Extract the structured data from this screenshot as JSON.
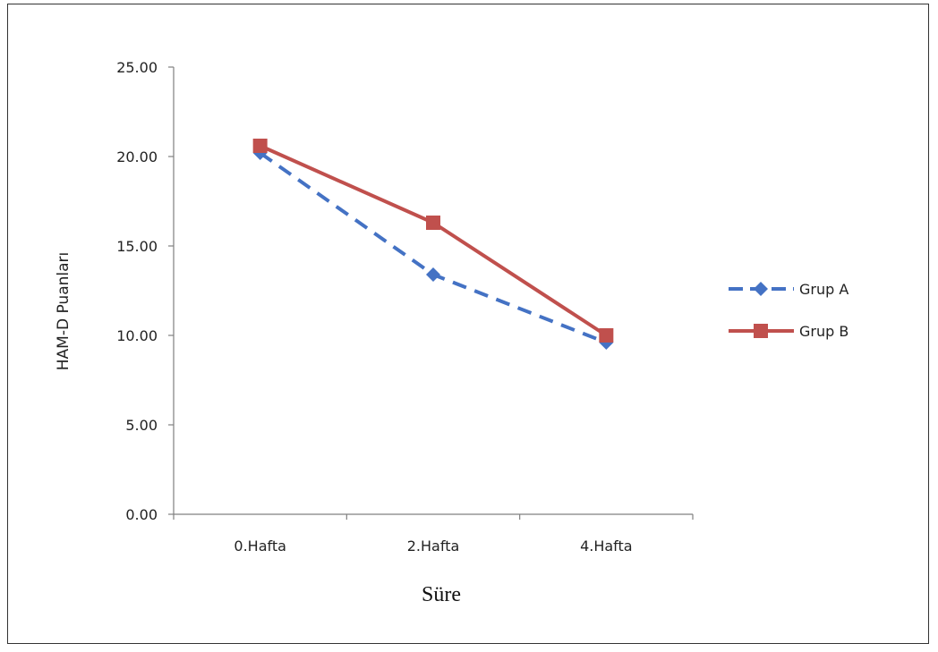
{
  "chart_data": {
    "type": "line",
    "categories": [
      "0.Hafta",
      "2.Hafta",
      "4.Hafta"
    ],
    "series": [
      {
        "name": "Grup A",
        "values": [
          20.2,
          13.4,
          9.6
        ],
        "color": "#4472C4",
        "dash": "dashed",
        "marker": "diamond"
      },
      {
        "name": "Grup B",
        "values": [
          20.6,
          16.3,
          10.0
        ],
        "color": "#C0504D",
        "dash": "solid",
        "marker": "square"
      }
    ],
    "xlabel": "Süre",
    "ylabel": "HAM-D Puanları",
    "ylim": [
      0,
      25
    ],
    "yticks": [
      "0.00",
      "5.00",
      "10.00",
      "15.00",
      "20.00",
      "25.00"
    ],
    "grid": false,
    "legend_position": "right"
  }
}
